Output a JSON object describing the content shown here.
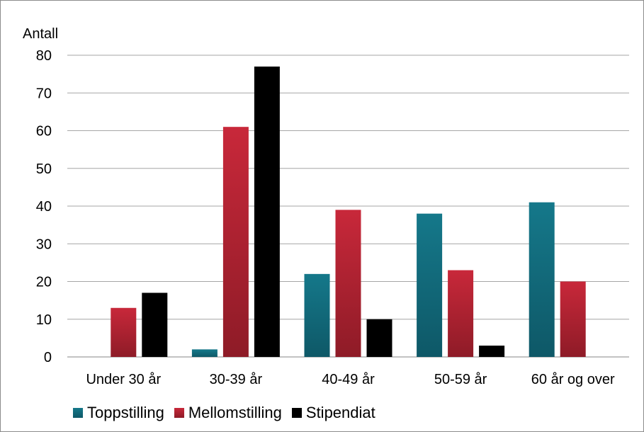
{
  "chart_data": {
    "type": "bar",
    "ylabel": "Antall",
    "ylim": [
      0,
      80
    ],
    "yticks": [
      0,
      10,
      20,
      30,
      40,
      50,
      60,
      70,
      80
    ],
    "grid": true,
    "legend_position": "bottom-left",
    "categories": [
      "Under 30 år",
      "30-39 år",
      "40-49 år",
      "50-59 år",
      "60 år og over"
    ],
    "series": [
      {
        "name": "Toppstilling",
        "values": [
          0,
          2,
          22,
          38,
          41
        ],
        "color": "#15788a",
        "color_dark": "#0e5867"
      },
      {
        "name": "Mellomstilling",
        "values": [
          13,
          61,
          39,
          23,
          20
        ],
        "color": "#c8283a",
        "color_dark": "#8e1b27"
      },
      {
        "name": "Stipendiat",
        "values": [
          17,
          77,
          10,
          3,
          0
        ],
        "color": "#000000",
        "color_dark": "#000000"
      }
    ]
  }
}
